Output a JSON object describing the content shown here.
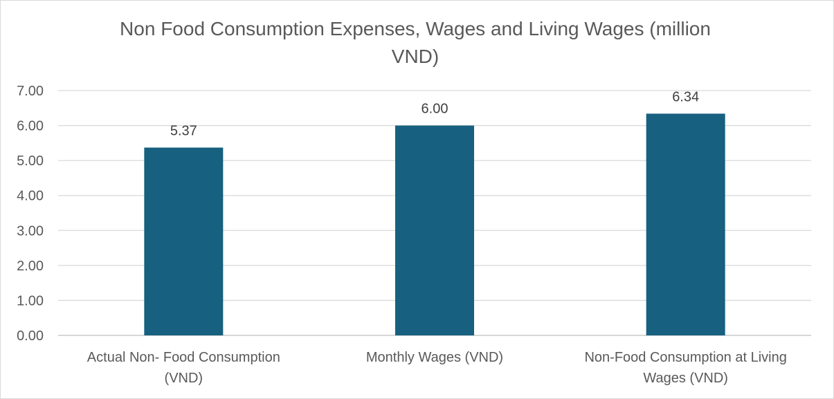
{
  "chart_data": {
    "type": "bar",
    "title": "Non Food Consumption Expenses, Wages and Living Wages (million VND)",
    "title_lines": [
      "Non Food Consumption Expenses, Wages and Living Wages (million",
      "VND)"
    ],
    "categories": [
      [
        "Actual Non- Food Consumption",
        "(VND)"
      ],
      [
        "Monthly Wages (VND)"
      ],
      [
        "Non-Food Consumption at Living",
        "Wages (VND)"
      ]
    ],
    "values": [
      5.37,
      6.0,
      6.34
    ],
    "data_labels": [
      "5.37",
      "6.00",
      "6.34"
    ],
    "ylim": [
      0,
      7
    ],
    "yticks": [
      "0.00",
      "1.00",
      "2.00",
      "3.00",
      "4.00",
      "5.00",
      "6.00",
      "7.00"
    ],
    "grid": true,
    "bar_color": "#17607f",
    "grid_color": "#d9d9d9"
  }
}
